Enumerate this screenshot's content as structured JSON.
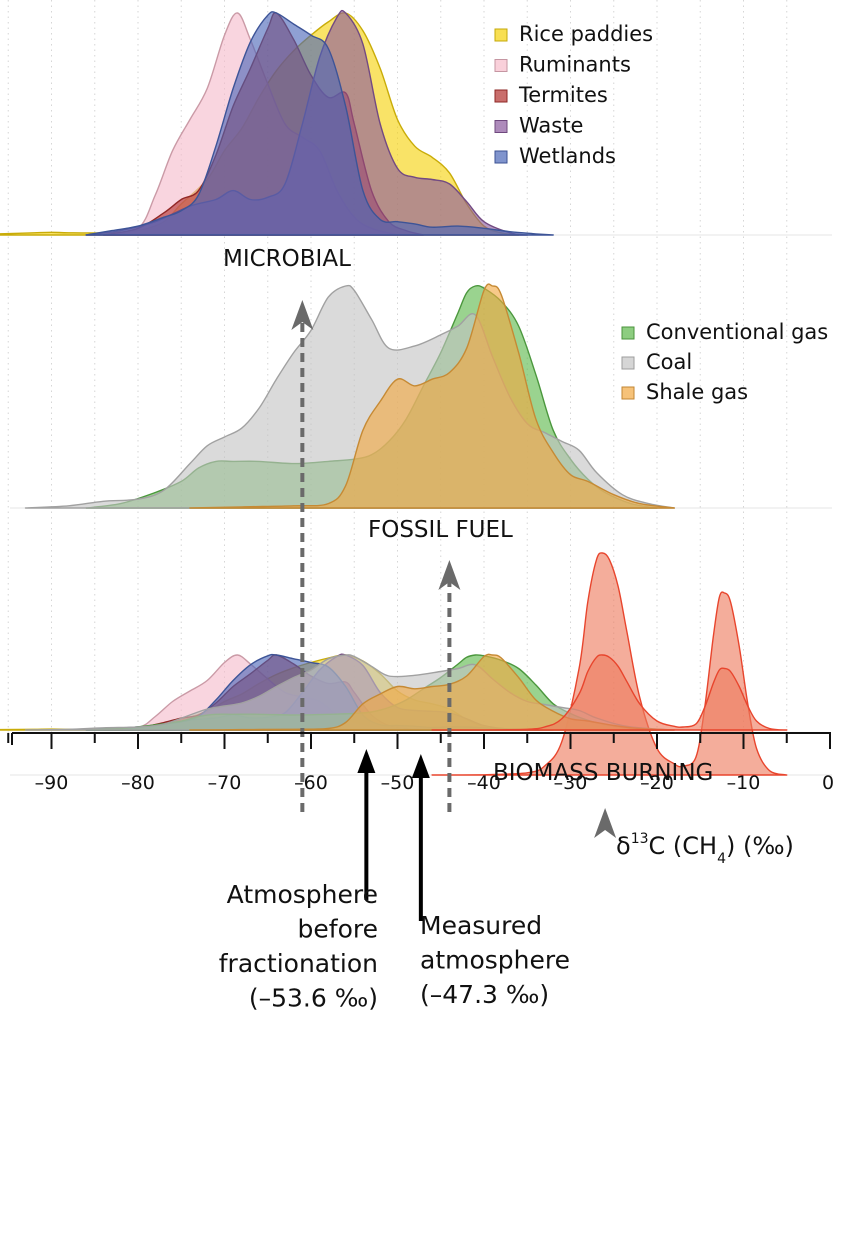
{
  "chart_data": {
    "type": "area",
    "subtype": "stacked ridgeline density plot",
    "xlabel": "δ¹³C (CH₄) (‰)",
    "xlabel_parts": {
      "prefix": "δ",
      "sup": "13",
      "mid": "C (CH",
      "sub": "4",
      "suffix": ") (‰)"
    },
    "xlim": [
      -96,
      0
    ],
    "xticks": [
      -90,
      -80,
      -70,
      -60,
      -50,
      -40,
      -30,
      -20,
      -10,
      0
    ],
    "xtick_labels": [
      "–90",
      "–80",
      "–70",
      "–60",
      "–50",
      "–40",
      "–30",
      "–20",
      "–10",
      "0"
    ],
    "grid": "vertical dotted lines every 5 ‰",
    "panels": [
      {
        "name": "MICROBIAL",
        "legend_position": "top-right",
        "series": [
          {
            "name": "Rice paddies",
            "color": "#F5D20A",
            "points": [
              [
                -96,
                0.005
              ],
              [
                -92,
                0.01
              ],
              [
                -90,
                0.012
              ],
              [
                -88,
                0.01
              ],
              [
                -84,
                0.01
              ],
              [
                -80,
                0.02
              ],
              [
                -77,
                0.06
              ],
              [
                -75,
                0.14
              ],
              [
                -72,
                0.25
              ],
              [
                -70,
                0.38
              ],
              [
                -68,
                0.48
              ],
              [
                -66,
                0.62
              ],
              [
                -64,
                0.74
              ],
              [
                -62,
                0.83
              ],
              [
                -60,
                0.9
              ],
              [
                -58,
                0.96
              ],
              [
                -56,
                1.0
              ],
              [
                -54,
                0.92
              ],
              [
                -52,
                0.75
              ],
              [
                -50,
                0.52
              ],
              [
                -48,
                0.4
              ],
              [
                -46,
                0.35
              ],
              [
                -44,
                0.28
              ],
              [
                -42,
                0.14
              ],
              [
                -40,
                0.04
              ],
              [
                -38,
                0.01
              ],
              [
                -36,
                0
              ]
            ]
          },
          {
            "name": "Ruminants",
            "color": "#F6BCCB",
            "points": [
              [
                -84,
                0
              ],
              [
                -80,
                0.03
              ],
              [
                -78,
                0.18
              ],
              [
                -76,
                0.38
              ],
              [
                -74,
                0.52
              ],
              [
                -72,
                0.66
              ],
              [
                -70,
                0.9
              ],
              [
                -68.5,
                1.0
              ],
              [
                -67,
                0.88
              ],
              [
                -65,
                0.68
              ],
              [
                -63,
                0.5
              ],
              [
                -61,
                0.44
              ],
              [
                -59,
                0.38
              ],
              [
                -57,
                0.2
              ],
              [
                -55,
                0.08
              ],
              [
                -53,
                0.03
              ],
              [
                -50,
                0
              ]
            ]
          },
          {
            "name": "Termites",
            "color": "#B2312E",
            "points": [
              [
                -84,
                0
              ],
              [
                -80,
                0.03
              ],
              [
                -77,
                0.1
              ],
              [
                -75,
                0.16
              ],
              [
                -73,
                0.2
              ],
              [
                -71,
                0.36
              ],
              [
                -69,
                0.58
              ],
              [
                -67,
                0.75
              ],
              [
                -65,
                0.93
              ],
              [
                -64,
                1.0
              ],
              [
                -62,
                0.88
              ],
              [
                -60,
                0.72
              ],
              [
                -58,
                0.62
              ],
              [
                -56,
                0.64
              ],
              [
                -55,
                0.5
              ],
              [
                -53,
                0.2
              ],
              [
                -51,
                0.06
              ],
              [
                -49,
                0.02
              ],
              [
                -47,
                0
              ]
            ]
          },
          {
            "name": "Waste",
            "color": "#8B5A9E",
            "points": [
              [
                -86,
                0
              ],
              [
                -82,
                0.02
              ],
              [
                -78,
                0.06
              ],
              [
                -74,
                0.13
              ],
              [
                -71,
                0.16
              ],
              [
                -69,
                0.2
              ],
              [
                -67,
                0.16
              ],
              [
                -65,
                0.17
              ],
              [
                -63,
                0.23
              ],
              [
                -61,
                0.5
              ],
              [
                -59,
                0.8
              ],
              [
                -57,
                0.98
              ],
              [
                -56,
                1.0
              ],
              [
                -54,
                0.86
              ],
              [
                -52,
                0.5
              ],
              [
                -50,
                0.3
              ],
              [
                -48,
                0.26
              ],
              [
                -46,
                0.25
              ],
              [
                -44,
                0.23
              ],
              [
                -42,
                0.15
              ],
              [
                -40,
                0.06
              ],
              [
                -37,
                0.01
              ],
              [
                -35,
                0
              ]
            ]
          },
          {
            "name": "Wetlands",
            "color": "#4A66B8",
            "points": [
              [
                -86,
                0
              ],
              [
                -83,
                0.02
              ],
              [
                -80,
                0.04
              ],
              [
                -77,
                0.08
              ],
              [
                -75,
                0.11
              ],
              [
                -73,
                0.18
              ],
              [
                -71,
                0.4
              ],
              [
                -69,
                0.66
              ],
              [
                -67,
                0.87
              ],
              [
                -65,
                0.99
              ],
              [
                -64,
                1.0
              ],
              [
                -62,
                0.95
              ],
              [
                -60,
                0.9
              ],
              [
                -58,
                0.84
              ],
              [
                -56,
                0.58
              ],
              [
                -54,
                0.2
              ],
              [
                -52,
                0.07
              ],
              [
                -50,
                0.06
              ],
              [
                -48,
                0.05
              ],
              [
                -46,
                0.035
              ],
              [
                -43,
                0.04
              ],
              [
                -40,
                0.03
              ],
              [
                -37,
                0.015
              ],
              [
                -34,
                0.005
              ],
              [
                -32,
                0
              ]
            ]
          }
        ]
      },
      {
        "name": "FOSSIL FUEL",
        "legend_position": "top-right",
        "series": [
          {
            "name": "Conventional gas",
            "color": "#5CB84A",
            "points": [
              [
                -86,
                0
              ],
              [
                -82,
                0.02
              ],
              [
                -78,
                0.07
              ],
              [
                -75,
                0.12
              ],
              [
                -73,
                0.18
              ],
              [
                -71,
                0.21
              ],
              [
                -69,
                0.21
              ],
              [
                -66,
                0.21
              ],
              [
                -62,
                0.2
              ],
              [
                -58,
                0.21
              ],
              [
                -55,
                0.22
              ],
              [
                -53,
                0.24
              ],
              [
                -51,
                0.3
              ],
              [
                -49,
                0.4
              ],
              [
                -47,
                0.55
              ],
              [
                -45,
                0.7
              ],
              [
                -43,
                0.88
              ],
              [
                -42,
                0.97
              ],
              [
                -41,
                1.0
              ],
              [
                -40,
                0.99
              ],
              [
                -38,
                0.93
              ],
              [
                -36,
                0.82
              ],
              [
                -34,
                0.6
              ],
              [
                -32,
                0.35
              ],
              [
                -30,
                0.22
              ],
              [
                -28,
                0.13
              ],
              [
                -26,
                0.07
              ],
              [
                -23,
                0.02
              ],
              [
                -20,
                0
              ]
            ]
          },
          {
            "name": "Coal",
            "color": "#C4C4C4",
            "points": [
              [
                -93,
                0
              ],
              [
                -88,
                0.01
              ],
              [
                -84,
                0.03
              ],
              [
                -80,
                0.04
              ],
              [
                -77,
                0.08
              ],
              [
                -74,
                0.2
              ],
              [
                -72,
                0.28
              ],
              [
                -70,
                0.32
              ],
              [
                -68,
                0.36
              ],
              [
                -66,
                0.45
              ],
              [
                -64,
                0.58
              ],
              [
                -62,
                0.7
              ],
              [
                -60,
                0.8
              ],
              [
                -58,
                0.95
              ],
              [
                -56,
                1.0
              ],
              [
                -55,
                0.98
              ],
              [
                -53,
                0.85
              ],
              [
                -51,
                0.72
              ],
              [
                -48,
                0.73
              ],
              [
                -45,
                0.78
              ],
              [
                -43,
                0.82
              ],
              [
                -41,
                0.87
              ],
              [
                -39,
                0.68
              ],
              [
                -37,
                0.5
              ],
              [
                -35,
                0.38
              ],
              [
                -33,
                0.34
              ],
              [
                -31,
                0.3
              ],
              [
                -29,
                0.26
              ],
              [
                -27,
                0.16
              ],
              [
                -24,
                0.06
              ],
              [
                -21,
                0.02
              ],
              [
                -18,
                0
              ]
            ]
          },
          {
            "name": "Shale gas",
            "color": "#F2A840",
            "points": [
              [
                -74,
                0
              ],
              [
                -68,
                0.005
              ],
              [
                -62,
                0.01
              ],
              [
                -58,
                0.02
              ],
              [
                -56,
                0.1
              ],
              [
                -54,
                0.35
              ],
              [
                -52,
                0.48
              ],
              [
                -50,
                0.58
              ],
              [
                -48,
                0.55
              ],
              [
                -46,
                0.58
              ],
              [
                -44,
                0.61
              ],
              [
                -42,
                0.72
              ],
              [
                -40,
                0.98
              ],
              [
                -39,
                1.0
              ],
              [
                -38,
                0.96
              ],
              [
                -36,
                0.7
              ],
              [
                -34,
                0.4
              ],
              [
                -32,
                0.25
              ],
              [
                -30,
                0.15
              ],
              [
                -28,
                0.12
              ],
              [
                -25,
                0.06
              ],
              [
                -22,
                0.02
              ],
              [
                -18,
                0
              ]
            ]
          }
        ]
      },
      {
        "name": "BIOMASS BURNING",
        "series": [
          {
            "name": "Biomass burning",
            "color": "#EE7A5E",
            "stroke": "#E8452D",
            "points": [
              [
                -46,
                0
              ],
              [
                -40,
                0.001
              ],
              [
                -35,
                0.01
              ],
              [
                -33,
                0.04
              ],
              [
                -31,
                0.15
              ],
              [
                -29,
                0.48
              ],
              [
                -28,
                0.78
              ],
              [
                -27,
                0.97
              ],
              [
                -26.3,
                1.0
              ],
              [
                -25.5,
                0.97
              ],
              [
                -24.5,
                0.85
              ],
              [
                -23.5,
                0.65
              ],
              [
                -22,
                0.35
              ],
              [
                -20,
                0.12
              ],
              [
                -18,
                0.05
              ],
              [
                -17,
                0.04
              ],
              [
                -15.5,
                0.08
              ],
              [
                -14.5,
                0.3
              ],
              [
                -13.5,
                0.62
              ],
              [
                -12.8,
                0.8
              ],
              [
                -12.2,
                0.82
              ],
              [
                -11.5,
                0.78
              ],
              [
                -10.5,
                0.58
              ],
              [
                -9.5,
                0.32
              ],
              [
                -8.5,
                0.12
              ],
              [
                -7,
                0.02
              ],
              [
                -5,
                0
              ]
            ]
          }
        ]
      }
    ],
    "annotations": [
      {
        "text_lines": [
          "Atmosphere",
          "before",
          "fractionation",
          "(–53.6 ‰)"
        ],
        "x": -53.6
      },
      {
        "text_lines": [
          "Measured",
          "atmosphere",
          "(–47.3 ‰)"
        ],
        "x": -47.3
      }
    ],
    "arrows": [
      {
        "from": "combined",
        "to": "MICROBIAL",
        "x": -61,
        "style": "dashed"
      },
      {
        "from": "combined",
        "to": "FOSSIL FUEL",
        "x": -44,
        "style": "dashed"
      },
      {
        "from": "combined",
        "to": "BIOMASS BURNING",
        "x": -26,
        "style": "solid"
      }
    ]
  }
}
